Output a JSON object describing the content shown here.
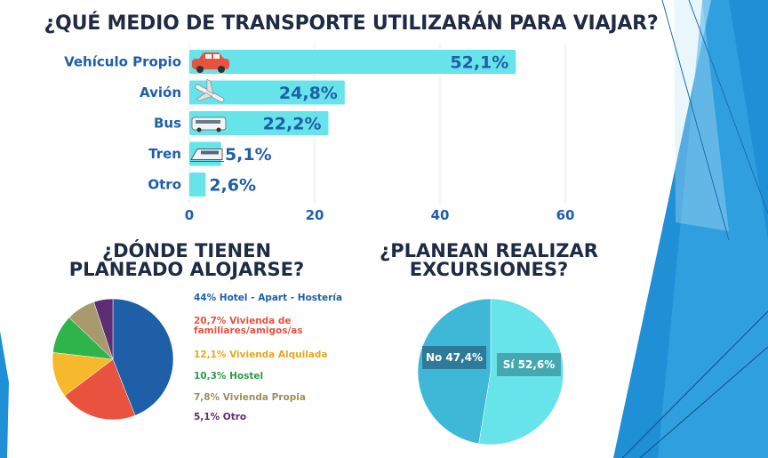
{
  "title": "¿QUÉ MEDIO DE TRANSPORTE UTILIZARÁN PARA VIAJAR?",
  "subtitle_lodging": [
    "¿DÓNDE TIENEN",
    "PLANEADO ALOJARSE?"
  ],
  "subtitle_excursions": [
    "¿PLANEAN REALIZAR",
    "EXCURSIONES?"
  ],
  "legend_lodging": [
    {
      "text": "44% Hotel - Apart - Hostería",
      "color": "#1f5fa8"
    },
    {
      "text": "20,7% Vivienda de familiares/amigos/as",
      "line1": "20,7% Vivienda de",
      "line2": "familiares/amigos/as",
      "color": "#e8523f"
    },
    {
      "text": "12,1% Vivienda Alquilada",
      "color": "#f5b92b"
    },
    {
      "text": "10,3% Hostel",
      "color": "#2db44a"
    },
    {
      "text": "7,8% Vivienda Propia",
      "color": "#a99a6e"
    },
    {
      "text": "5,1% Otro",
      "color": "#5b2d73"
    }
  ],
  "icons": [
    "car-icon",
    "airplane-icon",
    "bus-icon",
    "train-icon"
  ],
  "colors": {
    "bar": "#67e3ea",
    "title": "#1f2a44",
    "label": "#1f5fa8",
    "bg_accent": "#1f8fd6"
  },
  "chart_data": [
    {
      "type": "bar",
      "orientation": "horizontal",
      "title": "¿QUÉ MEDIO DE TRANSPORTE UTILIZARÁN PARA VIAJAR?",
      "categories": [
        "Vehículo Propio",
        "Avión",
        "Bus",
        "Tren",
        "Otro"
      ],
      "values": [
        52.1,
        24.8,
        22.2,
        5.1,
        2.6
      ],
      "value_labels": [
        "52,1%",
        "24,8%",
        "22,2%",
        "5,1%",
        "2,6%"
      ],
      "xlim": [
        0,
        60
      ],
      "x_ticks": [
        "0",
        "20",
        "40",
        "60"
      ],
      "grid": true
    },
    {
      "type": "pie",
      "title": "¿DÓNDE TIENEN PLANEADO ALOJARSE?",
      "labels": [
        "Hotel - Apart - Hostería",
        "Vivienda de familiares/amigos/as",
        "Vivienda Alquilada",
        "Hostel",
        "Vivienda Propia",
        "Otro"
      ],
      "values": [
        44,
        20.7,
        12.1,
        10.3,
        7.8,
        5.1
      ],
      "colors": [
        "#1f5fa8",
        "#e8523f",
        "#f5b92b",
        "#2db44a",
        "#a99a6e",
        "#5b2d73"
      ],
      "legend": "right"
    },
    {
      "type": "pie",
      "title": "¿PLANEAN REALIZAR EXCURSIONES?",
      "labels": [
        "Sí",
        "No"
      ],
      "values": [
        52.6,
        47.4
      ],
      "value_labels": [
        "Sí 52,6%",
        "No 47,4%"
      ],
      "colors": [
        "#67e3ea",
        "#3fb8d8"
      ]
    }
  ]
}
